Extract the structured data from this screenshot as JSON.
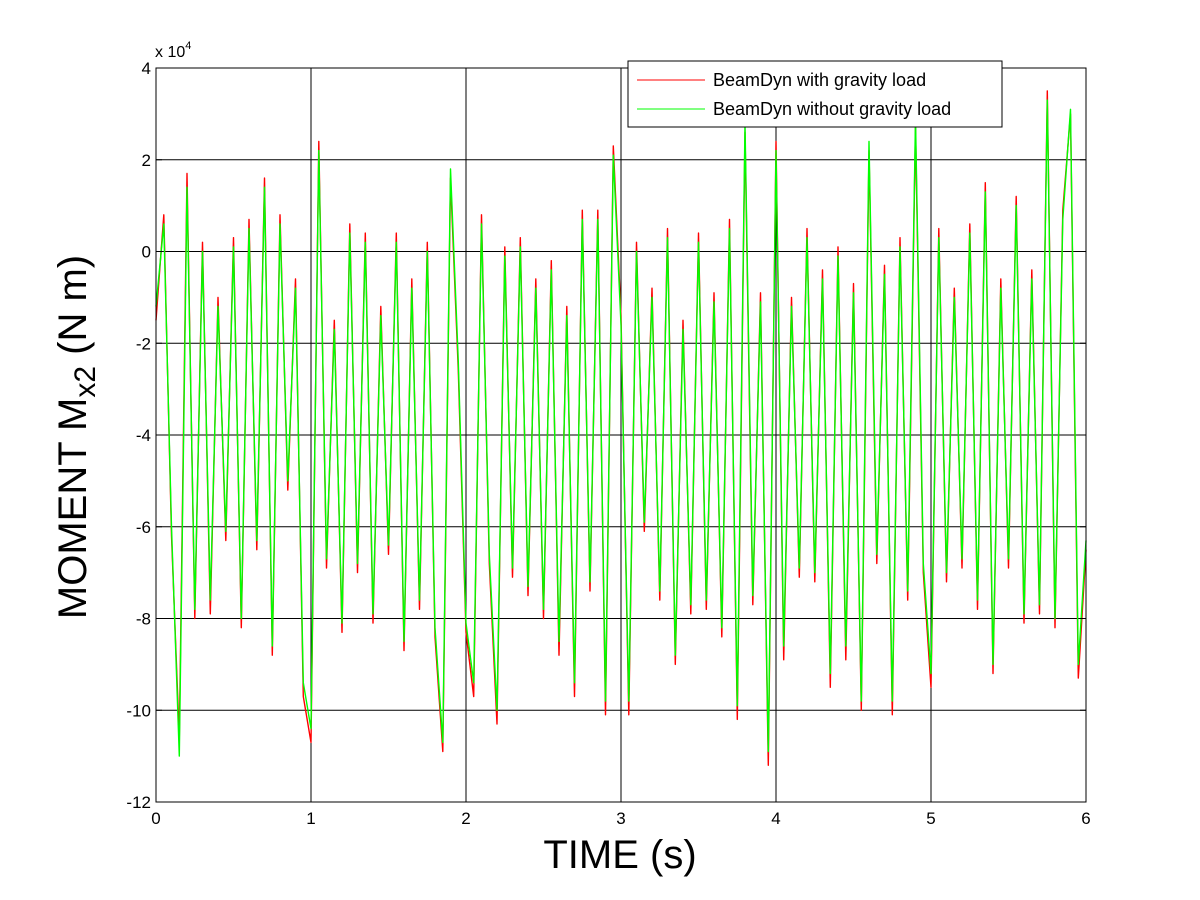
{
  "chart_data": {
    "type": "line",
    "title": "",
    "xlabel": "TIME (s)",
    "ylabel_main": "MOMENT M",
    "ylabel_sub": "x2",
    "ylabel_unit": " (N m)",
    "y_exponent_base": "x 10",
    "y_exponent_power": "4",
    "xlim": [
      0,
      6
    ],
    "ylim": [
      -12,
      4
    ],
    "x_ticks": [
      0,
      1,
      2,
      3,
      4,
      5,
      6
    ],
    "x_tick_labels": [
      "0",
      "1",
      "2",
      "3",
      "4",
      "5",
      "6"
    ],
    "y_ticks": [
      -12,
      -10,
      -8,
      -6,
      -4,
      -2,
      0,
      2,
      4
    ],
    "y_tick_labels": [
      "-12",
      "-10",
      "-8",
      "-6",
      "-4",
      "-2",
      "0",
      "2",
      "4"
    ],
    "grid": true,
    "legend_position": "top-right",
    "series": [
      {
        "name": "BeamDyn with gravity load",
        "color": "#ff0000",
        "x": [
          0,
          0.05,
          0.1,
          0.15,
          0.2,
          0.25,
          0.3,
          0.35,
          0.4,
          0.45,
          0.5,
          0.55,
          0.6,
          0.65,
          0.7,
          0.75,
          0.8,
          0.85,
          0.9,
          0.95,
          1.0,
          1.05,
          1.1,
          1.15,
          1.2,
          1.25,
          1.3,
          1.35,
          1.4,
          1.45,
          1.5,
          1.55,
          1.6,
          1.65,
          1.7,
          1.75,
          1.8,
          1.85,
          1.9,
          1.95,
          2.0,
          2.05,
          2.1,
          2.15,
          2.2,
          2.25,
          2.3,
          2.35,
          2.4,
          2.45,
          2.5,
          2.55,
          2.6,
          2.65,
          2.7,
          2.75,
          2.8,
          2.85,
          2.9,
          2.95,
          3.0,
          3.05,
          3.1,
          3.15,
          3.2,
          3.25,
          3.3,
          3.35,
          3.4,
          3.45,
          3.5,
          3.55,
          3.6,
          3.65,
          3.7,
          3.75,
          3.8,
          3.85,
          3.9,
          3.95,
          4.0,
          4.05,
          4.1,
          4.15,
          4.2,
          4.25,
          4.3,
          4.35,
          4.4,
          4.45,
          4.5,
          4.55,
          4.6,
          4.65,
          4.7,
          4.75,
          4.8,
          4.85,
          4.9,
          4.95,
          5.0,
          5.05,
          5.1,
          5.15,
          5.2,
          5.25,
          5.3,
          5.35,
          5.4,
          5.45,
          5.5,
          5.55,
          5.6,
          5.65,
          5.7,
          5.75,
          5.8,
          5.85,
          5.9,
          5.95,
          6.0
        ],
        "values": [
          -1.5,
          0.8,
          -6.2,
          -10.6,
          1.7,
          -8.0,
          0.2,
          -7.9,
          -1.0,
          -6.3,
          0.3,
          -8.2,
          0.7,
          -6.5,
          1.6,
          -8.8,
          0.8,
          -5.2,
          -0.6,
          -9.7,
          -10.7,
          2.4,
          -6.9,
          -1.5,
          -8.3,
          0.6,
          -7.0,
          0.4,
          -8.1,
          -1.2,
          -6.6,
          0.4,
          -8.7,
          -0.6,
          -7.8,
          0.2,
          -8.4,
          -10.9,
          1.6,
          -2.6,
          -8.3,
          -9.7,
          0.8,
          -6.8,
          -10.3,
          0.1,
          -7.1,
          0.3,
          -7.5,
          -0.6,
          -8.0,
          -0.2,
          -8.8,
          -1.2,
          -9.7,
          0.9,
          -7.4,
          0.9,
          -10.1,
          2.3,
          -1.4,
          -10.1,
          0.2,
          -6.1,
          -0.8,
          -7.6,
          0.5,
          -9.0,
          -1.5,
          -7.9,
          0.4,
          -7.8,
          -0.9,
          -8.4,
          0.7,
          -10.2,
          2.6,
          -7.7,
          -0.9,
          -11.2,
          2.4,
          -8.9,
          -1.0,
          -7.1,
          0.5,
          -7.2,
          -0.4,
          -9.5,
          0.1,
          -8.9,
          -0.7,
          -10.0,
          2.2,
          -6.8,
          -0.3,
          -10.1,
          0.3,
          -7.6,
          2.7,
          -7.0,
          -9.5,
          0.5,
          -7.2,
          -0.8,
          -6.9,
          0.6,
          -7.8,
          1.5,
          -9.2,
          -0.6,
          -6.9,
          1.2,
          -8.1,
          -0.4,
          -7.9,
          3.5,
          -8.2,
          0.9,
          3.0,
          -9.3,
          -6.5
        ]
      },
      {
        "name": "BeamDyn without gravity load",
        "color": "#00ff00",
        "x": [
          0,
          0.05,
          0.1,
          0.15,
          0.2,
          0.25,
          0.3,
          0.35,
          0.4,
          0.45,
          0.5,
          0.55,
          0.6,
          0.65,
          0.7,
          0.75,
          0.8,
          0.85,
          0.9,
          0.95,
          1.0,
          1.05,
          1.1,
          1.15,
          1.2,
          1.25,
          1.3,
          1.35,
          1.4,
          1.45,
          1.5,
          1.55,
          1.6,
          1.65,
          1.7,
          1.75,
          1.8,
          1.85,
          1.9,
          1.95,
          2.0,
          2.05,
          2.1,
          2.15,
          2.2,
          2.25,
          2.3,
          2.35,
          2.4,
          2.45,
          2.5,
          2.55,
          2.6,
          2.65,
          2.7,
          2.75,
          2.8,
          2.85,
          2.9,
          2.95,
          3.0,
          3.05,
          3.1,
          3.15,
          3.2,
          3.25,
          3.3,
          3.35,
          3.4,
          3.45,
          3.5,
          3.55,
          3.6,
          3.65,
          3.7,
          3.75,
          3.8,
          3.85,
          3.9,
          3.95,
          4.0,
          4.05,
          4.1,
          4.15,
          4.2,
          4.25,
          4.3,
          4.35,
          4.4,
          4.45,
          4.5,
          4.55,
          4.6,
          4.65,
          4.7,
          4.75,
          4.8,
          4.85,
          4.9,
          4.95,
          5.0,
          5.05,
          5.1,
          5.15,
          5.2,
          5.25,
          5.3,
          5.35,
          5.4,
          5.45,
          5.5,
          5.55,
          5.6,
          5.65,
          5.7,
          5.75,
          5.8,
          5.85,
          5.9,
          5.95,
          6.0
        ],
        "values": [
          -1.2,
          0.6,
          -6.0,
          -11.0,
          1.4,
          -7.8,
          0.0,
          -7.6,
          -1.2,
          -6.1,
          0.1,
          -8.0,
          0.5,
          -6.3,
          1.4,
          -8.6,
          0.6,
          -5.0,
          -0.8,
          -9.4,
          -10.4,
          2.2,
          -6.7,
          -1.7,
          -8.1,
          0.4,
          -6.8,
          0.2,
          -7.9,
          -1.4,
          -6.4,
          0.2,
          -8.5,
          -0.8,
          -7.6,
          0.0,
          -8.2,
          -10.7,
          1.8,
          -2.4,
          -8.1,
          -9.4,
          0.6,
          -6.6,
          -10.0,
          -0.1,
          -6.9,
          0.1,
          -7.3,
          -0.8,
          -7.8,
          -0.4,
          -8.5,
          -1.4,
          -9.4,
          0.7,
          -7.2,
          0.7,
          -9.8,
          2.1,
          -1.6,
          -9.8,
          0.0,
          -5.9,
          -1.0,
          -7.4,
          0.3,
          -8.8,
          -1.7,
          -7.7,
          0.2,
          -7.6,
          -1.1,
          -8.2,
          0.5,
          -9.9,
          2.8,
          -7.5,
          -1.1,
          -10.9,
          2.2,
          -8.6,
          -1.2,
          -6.9,
          0.3,
          -7.0,
          -0.6,
          -9.2,
          -0.1,
          -8.6,
          -0.9,
          -9.8,
          2.4,
          -6.6,
          -0.5,
          -9.8,
          0.1,
          -7.4,
          2.9,
          -6.8,
          -9.2,
          0.3,
          -7.0,
          -1.0,
          -6.7,
          0.4,
          -7.6,
          1.3,
          -9.0,
          -0.8,
          -6.7,
          1.0,
          -7.9,
          -0.6,
          -7.7,
          3.3,
          -8.0,
          0.7,
          3.1,
          -9.0,
          -6.3
        ]
      }
    ]
  }
}
